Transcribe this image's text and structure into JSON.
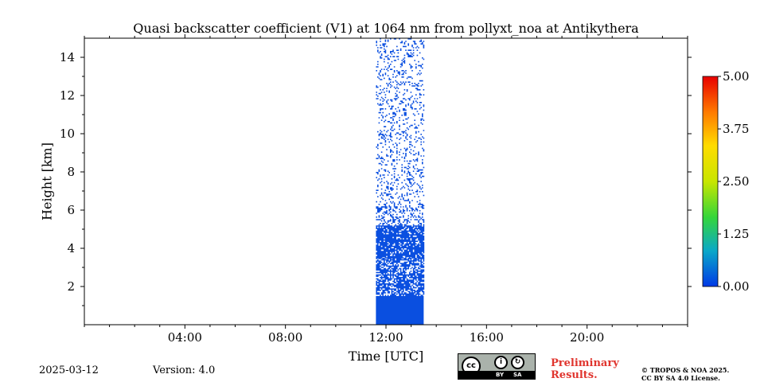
{
  "chart_data": {
    "type": "heatmap",
    "title": "Quasi backscatter coefficient (V1) at 1064 nm from pollyxt_noa at Antikythera",
    "xlabel": "Time [UTC]",
    "ylabel": "Height [km]",
    "x_unit": "hours UTC",
    "xlim": [
      0,
      24
    ],
    "ylim": [
      0,
      15
    ],
    "x_ticks": [
      {
        "value": 4,
        "label": "04:00"
      },
      {
        "value": 8,
        "label": "08:00"
      },
      {
        "value": 12,
        "label": "12:00"
      },
      {
        "value": 16,
        "label": "16:00"
      },
      {
        "value": 20,
        "label": "20:00"
      }
    ],
    "y_ticks": [
      {
        "value": 2,
        "label": "2"
      },
      {
        "value": 4,
        "label": "4"
      },
      {
        "value": 6,
        "label": "6"
      },
      {
        "value": 8,
        "label": "8"
      },
      {
        "value": 10,
        "label": "10"
      },
      {
        "value": 12,
        "label": "12"
      },
      {
        "value": 14,
        "label": "14"
      }
    ],
    "colorbar": {
      "min": 0.0,
      "max": 5.0,
      "ticks": [
        "0.00",
        "1.25",
        "2.50",
        "3.75",
        "5.00"
      ],
      "colors": [
        "#0039e6",
        "#0aa8c8",
        "#35d63a",
        "#c8e600",
        "#ffdc00",
        "#ff7a00",
        "#e80000"
      ]
    },
    "measurement": {
      "start_hour": 11.6,
      "end_hour": 13.5,
      "layers": [
        {
          "bottom_km": 0.0,
          "top_km": 1.5,
          "density": 1.0
        },
        {
          "bottom_km": 1.5,
          "top_km": 3.5,
          "density": 0.7
        },
        {
          "bottom_km": 3.5,
          "top_km": 5.2,
          "density": 0.85
        },
        {
          "bottom_km": 5.2,
          "top_km": 6.2,
          "density": 0.35
        },
        {
          "bottom_km": 6.2,
          "top_km": 15.0,
          "density": 0.18
        }
      ],
      "value_range": [
        0.0,
        0.3
      ]
    }
  },
  "footer": {
    "date": "2025-03-12",
    "version": "Version: 4.0",
    "preliminary_line1": "Preliminary",
    "preliminary_line2": "Results.",
    "legal_line1": "© TROPOS & NOA 2025.",
    "legal_line2": "CC BY SA 4.0 License.",
    "badge_by": "BY",
    "badge_sa": "SA",
    "badge_cc": "cc"
  }
}
